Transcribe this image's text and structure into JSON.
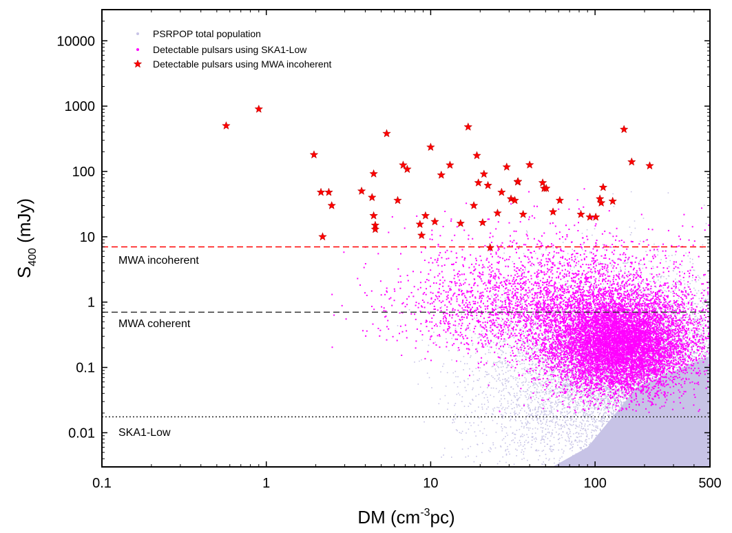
{
  "chart_data": {
    "type": "scatter",
    "title": "",
    "xlabel": "DM (cm^-3pc)",
    "ylabel": "S400 (mJy)",
    "xlabel_parts": {
      "pre": "DM (cm",
      "sup": "-3",
      "post": "pc)"
    },
    "ylabel_parts": {
      "main": "S",
      "sub": "400",
      "post": " (mJy)"
    },
    "xscale": "log",
    "yscale": "log",
    "xlim": [
      0.1,
      500
    ],
    "ylim": [
      0.003,
      30000
    ],
    "x_ticks": [
      {
        "value": 0.1,
        "label": "0.1"
      },
      {
        "value": 1,
        "label": "1"
      },
      {
        "value": 10,
        "label": "10"
      },
      {
        "value": 100,
        "label": "100"
      },
      {
        "value": 500,
        "label": "500"
      }
    ],
    "y_ticks": [
      {
        "value": 0.01,
        "label": "0.01"
      },
      {
        "value": 0.1,
        "label": "0.1"
      },
      {
        "value": 1,
        "label": "1"
      },
      {
        "value": 10,
        "label": "10"
      },
      {
        "value": 100,
        "label": "100"
      },
      {
        "value": 1000,
        "label": "1000"
      },
      {
        "value": 10000,
        "label": "10000"
      }
    ],
    "legend_position": "top-left",
    "grid": false,
    "colors": {
      "population": "#c7c3e6",
      "ska": "#ff00ff",
      "mwa": "#ff0000"
    },
    "series": [
      {
        "name": "PSRPOP total population",
        "marker": "dot",
        "color": "#c7c3e6"
      },
      {
        "name": "Detectable pulsars using SKA1-Low",
        "marker": "dot",
        "color": "#ff00ff"
      },
      {
        "name": "Detectable pulsars using MWA incoherent",
        "marker": "star",
        "color": "#ff0000",
        "points": [
          [
            0.57,
            500
          ],
          [
            0.9,
            900
          ],
          [
            1.95,
            180
          ],
          [
            2.15,
            48
          ],
          [
            2.2,
            10
          ],
          [
            2.4,
            48
          ],
          [
            2.5,
            30
          ],
          [
            3.8,
            50
          ],
          [
            4.4,
            40
          ],
          [
            4.5,
            92
          ],
          [
            4.5,
            21
          ],
          [
            4.6,
            15
          ],
          [
            4.6,
            13
          ],
          [
            5.4,
            380
          ],
          [
            6.3,
            36
          ],
          [
            6.8,
            125
          ],
          [
            7.2,
            108
          ],
          [
            8.6,
            15.5
          ],
          [
            8.8,
            10.5
          ],
          [
            9.3,
            21
          ],
          [
            10,
            235
          ],
          [
            10.6,
            17
          ],
          [
            11.6,
            88
          ],
          [
            13.1,
            125
          ],
          [
            15.2,
            16
          ],
          [
            16.9,
            480
          ],
          [
            18.3,
            30
          ],
          [
            19.1,
            175
          ],
          [
            19.5,
            67
          ],
          [
            20.7,
            16.5
          ],
          [
            21.1,
            91
          ],
          [
            22.3,
            61
          ],
          [
            23,
            6.8
          ],
          [
            25.5,
            23
          ],
          [
            27,
            48
          ],
          [
            29,
            117
          ],
          [
            30.8,
            38
          ],
          [
            32.5,
            36
          ],
          [
            33.8,
            69
          ],
          [
            34,
            70
          ],
          [
            36.5,
            22
          ],
          [
            40,
            126
          ],
          [
            48,
            67
          ],
          [
            49,
            55
          ],
          [
            50.5,
            55
          ],
          [
            55.5,
            24
          ],
          [
            61,
            36
          ],
          [
            82,
            22
          ],
          [
            93,
            20
          ],
          [
            101,
            20
          ],
          [
            107,
            38
          ],
          [
            109,
            33
          ],
          [
            112,
            57
          ],
          [
            128,
            35
          ],
          [
            150,
            440
          ],
          [
            167,
            140
          ],
          [
            215,
            122
          ]
        ]
      }
    ],
    "threshold_lines": [
      {
        "name": "MWA incoherent",
        "value": 7,
        "color": "#ff0000",
        "style": "dashed"
      },
      {
        "name": "MWA coherent",
        "value": 0.7,
        "color": "#333333",
        "style": "dashed"
      },
      {
        "name": "SKA1-Low",
        "value": 0.0175,
        "color": "#333333",
        "style": "dotted"
      }
    ]
  },
  "legend": [
    {
      "label": "PSRPOP total population",
      "marker": "dot",
      "color": "#c7c3e6"
    },
    {
      "label": "Detectable pulsars using SKA1-Low",
      "marker": "dot",
      "color": "#ff00ff"
    },
    {
      "label": "Detectable pulsars using MWA incoherent",
      "marker": "star",
      "color": "#ff0000"
    }
  ],
  "annotations": {
    "mwa_incoherent": "MWA incoherent",
    "mwa_coherent": "MWA coherent",
    "ska1_low": "SKA1-Low"
  }
}
